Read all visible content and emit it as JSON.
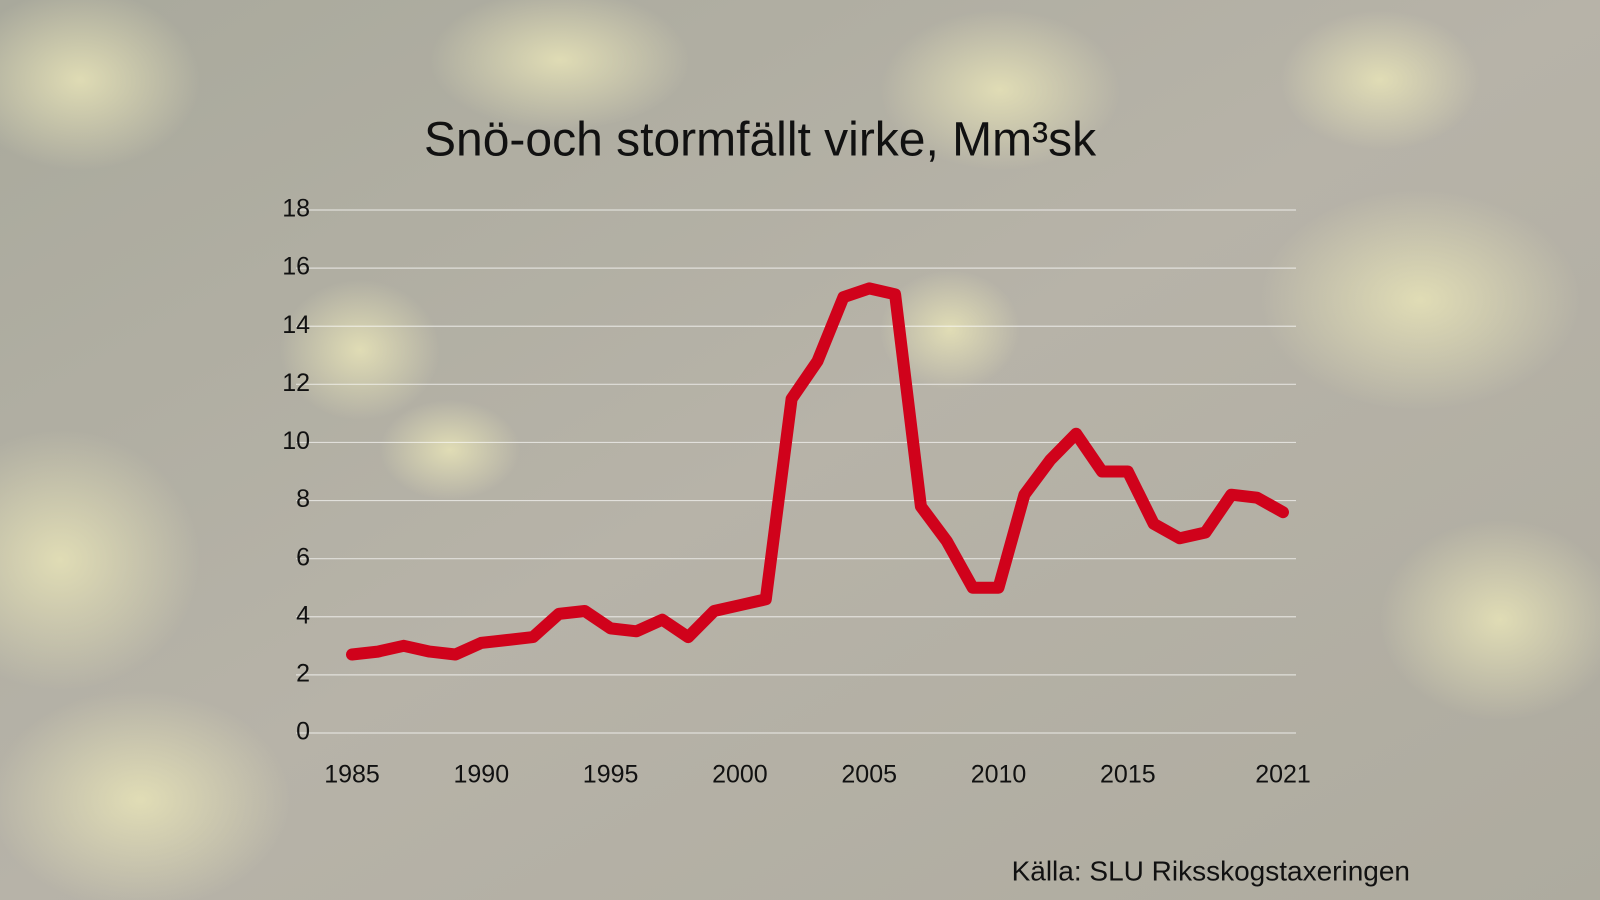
{
  "chart_data": {
    "type": "line",
    "title": "Snö-och stormfällt virke, Mm³sk",
    "source": "Källa: SLU Riksskogstaxeringen",
    "x": [
      1985,
      1986,
      1987,
      1988,
      1989,
      1990,
      1991,
      1992,
      1993,
      1994,
      1995,
      1996,
      1997,
      1998,
      1999,
      2000,
      2001,
      2002,
      2003,
      2004,
      2005,
      2006,
      2007,
      2008,
      2009,
      2010,
      2011,
      2012,
      2013,
      2014,
      2015,
      2016,
      2017,
      2018,
      2019,
      2020,
      2021
    ],
    "values": [
      2.7,
      2.8,
      3.0,
      2.8,
      2.7,
      3.1,
      3.2,
      3.3,
      4.1,
      4.2,
      3.6,
      3.5,
      3.9,
      3.3,
      4.2,
      4.4,
      4.6,
      11.5,
      12.8,
      15.0,
      15.3,
      15.1,
      7.8,
      6.6,
      5.0,
      5.0,
      8.2,
      9.4,
      10.3,
      9.0,
      9.0,
      7.2,
      6.7,
      6.9,
      8.2,
      8.1,
      7.6
    ],
    "color": "#d0021b",
    "xlim": [
      1985,
      2021
    ],
    "xticks": [
      1985,
      1990,
      1995,
      2000,
      2005,
      2010,
      2015,
      2021
    ],
    "ylim": [
      0,
      18
    ],
    "yticks": [
      0,
      2,
      4,
      6,
      8,
      10,
      12,
      14,
      16,
      18
    ],
    "grid": true
  }
}
